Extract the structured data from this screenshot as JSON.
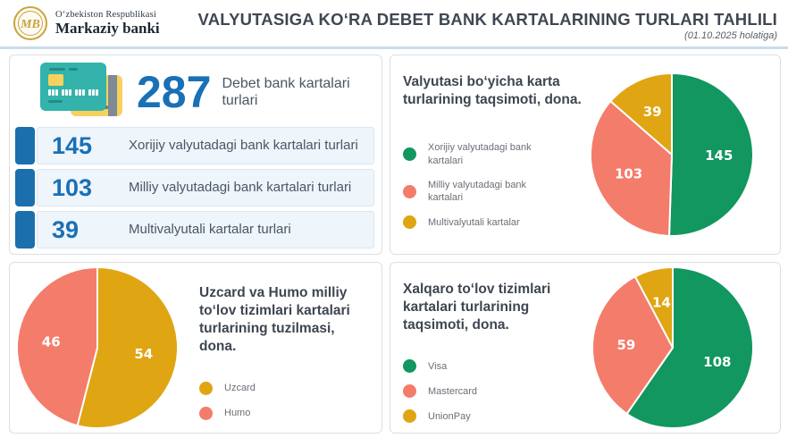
{
  "header": {
    "org_line1": "O‘zbekiston Respublikasi",
    "org_line2": "Markaziy banki",
    "logo_monogram": "MB",
    "title": "VALYUTASIGA KO‘RA DEBET BANK KARTALARINING TURLARI TAHLILI",
    "subtitle": "(01.10.2025 holatiga)"
  },
  "summary": {
    "total_value": "287",
    "total_label": "Debet bank kartalari turlari",
    "rows": [
      {
        "value": "145",
        "label": "Xorijiy valyutadagi bank kartalari turlari"
      },
      {
        "value": "103",
        "label": "Milliy valyutadagi bank kartalari turlari"
      },
      {
        "value": "39",
        "label": "Multivalyutali kartalar turlari"
      }
    ]
  },
  "colors": {
    "accent_blue": "#1a70b5",
    "row_bar_blue": "#1b6fad",
    "green": "#11975f",
    "salmon": "#f47c6b",
    "gold": "#dfa513",
    "header_divider": "#c9dcec"
  },
  "chart_data": [
    {
      "type": "pie",
      "title": "Valyutasi bo‘yicha karta turlarining taqsimoti, dona.",
      "labels": [
        "Xorijiy valyutadagi bank kartalari",
        "Milliy valyutadagi bank kartalari",
        "Multivalyutali kartalar"
      ],
      "values": [
        145,
        103,
        39
      ],
      "colors": [
        "#11975f",
        "#f47c6b",
        "#dfa513"
      ],
      "start_angle": "top",
      "direction": "clockwise",
      "legend_position": "left",
      "data_label_color": "#ffffff"
    },
    {
      "type": "pie",
      "title": "Uzcard va Humo milliy to‘lov tizimlari kartalari turlarining tuzilmasi, dona.",
      "labels": [
        "Uzcard",
        "Humo"
      ],
      "values": [
        54,
        46
      ],
      "colors": [
        "#dfa513",
        "#f47c6b"
      ],
      "start_angle": "top",
      "direction": "clockwise",
      "legend_position": "right",
      "data_label_color": "#ffffff"
    },
    {
      "type": "pie",
      "title": "Xalqaro to‘lov tizimlari kartalari turlarining taqsimoti, dona.",
      "labels": [
        "Visa",
        "Mastercard",
        "UnionPay"
      ],
      "values": [
        108,
        59,
        14
      ],
      "colors": [
        "#11975f",
        "#f47c6b",
        "#dfa513"
      ],
      "start_angle": "top",
      "direction": "clockwise",
      "legend_position": "left",
      "data_label_color": "#ffffff"
    }
  ]
}
